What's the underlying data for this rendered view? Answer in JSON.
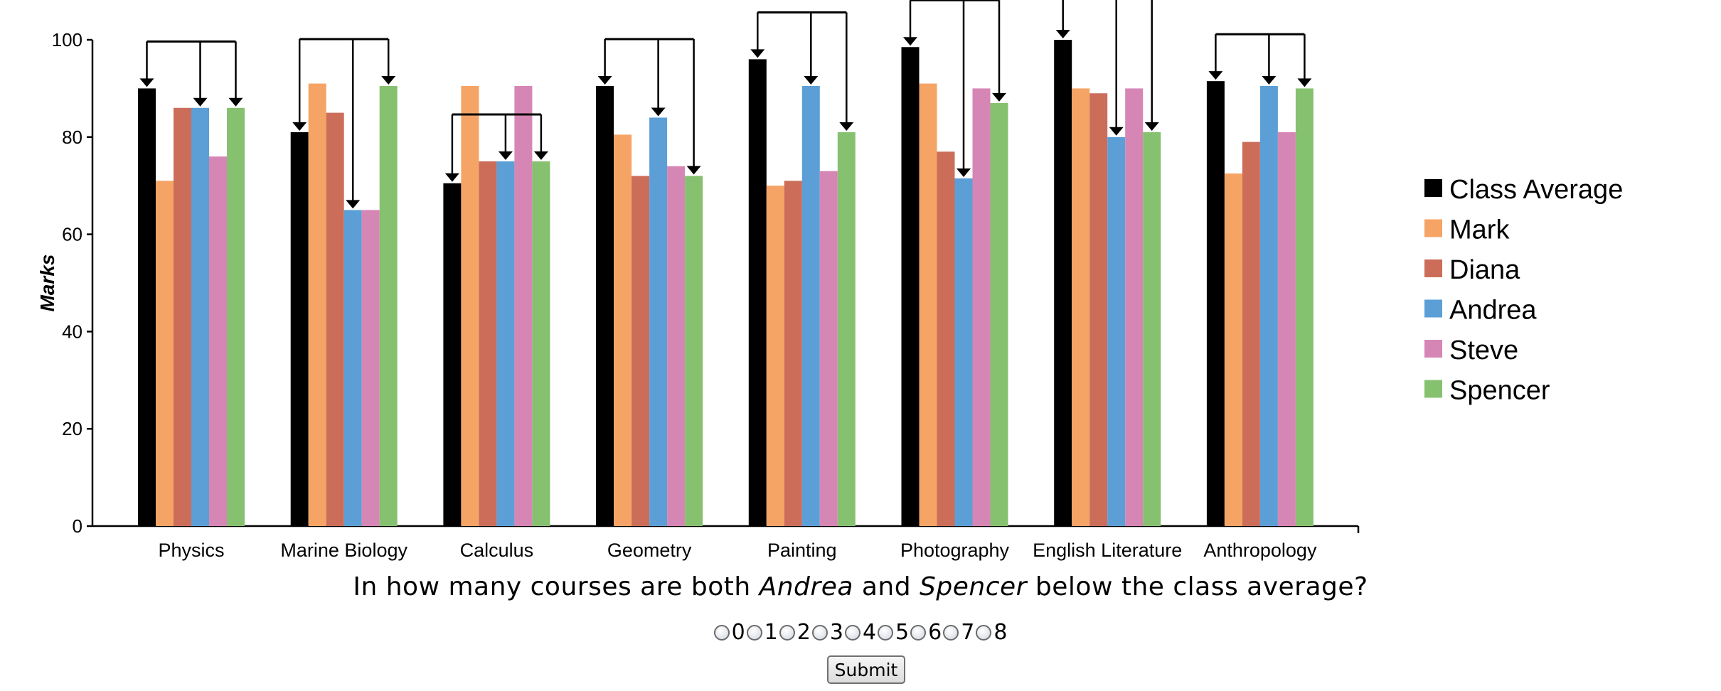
{
  "chart_data": {
    "type": "bar",
    "ylabel": "Marks",
    "ylim": [
      0,
      100
    ],
    "yticks": [
      "0",
      "20",
      "40",
      "60",
      "80",
      "100"
    ],
    "categories": [
      "Physics",
      "Marine Biology",
      "Calculus",
      "Geometry",
      "Painting",
      "Photography",
      "English Literature",
      "Anthropology"
    ],
    "series": [
      {
        "name": "Class Average",
        "color": "#000000",
        "values": [
          90,
          81,
          70.5,
          90.5,
          96,
          98.5,
          100,
          91.5
        ]
      },
      {
        "name": "Mark",
        "color": "#F5A466",
        "values": [
          71,
          91,
          90.5,
          80.5,
          70,
          91,
          90,
          72.5
        ]
      },
      {
        "name": "Diana",
        "color": "#CC6D5A",
        "values": [
          86,
          85,
          75,
          72,
          71,
          77,
          89,
          79
        ]
      },
      {
        "name": "Andrea",
        "color": "#5B9FD6",
        "values": [
          86,
          65,
          75,
          84,
          90.5,
          71.5,
          80,
          90.5
        ]
      },
      {
        "name": "Steve",
        "color": "#D686B4",
        "values": [
          76,
          65,
          90.5,
          74,
          73,
          90,
          90,
          81
        ]
      },
      {
        "name": "Spencer",
        "color": "#86C170",
        "values": [
          86,
          90.5,
          75,
          72,
          81,
          87,
          81,
          90
        ]
      }
    ],
    "highlight_arrows_to": [
      "Class Average",
      "Andrea",
      "Spencer"
    ],
    "legend": "right"
  },
  "question": {
    "before": "In how many courses are both ",
    "name1": "Andrea",
    "middle": " and ",
    "name2": "Spencer",
    "after": " below the class average?"
  },
  "options": [
    "0",
    "1",
    "2",
    "3",
    "4",
    "5",
    "6",
    "7",
    "8"
  ],
  "submit_label": "Submit"
}
